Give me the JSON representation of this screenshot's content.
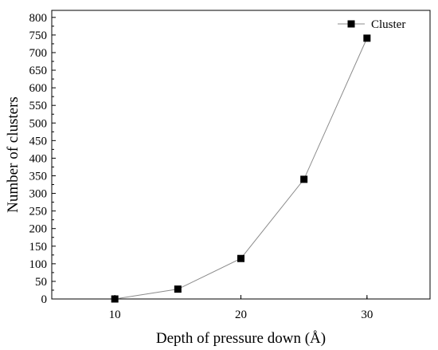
{
  "chart_data": {
    "type": "line",
    "title": "",
    "xlabel": "Depth of pressure down (Å)",
    "ylabel": "Number of clusters",
    "xlim": [
      5,
      35
    ],
    "ylim": [
      0,
      820
    ],
    "x_ticks": [
      10,
      20,
      30
    ],
    "y_ticks": [
      0,
      50,
      100,
      150,
      200,
      250,
      300,
      350,
      400,
      450,
      500,
      550,
      600,
      650,
      700,
      750,
      800
    ],
    "grid": false,
    "legend_position": "top-right",
    "series": [
      {
        "name": "Cluster",
        "marker": "square",
        "color": "#000000",
        "line_color": "#8c8c8c",
        "x": [
          10,
          15,
          20,
          25,
          30
        ],
        "y": [
          0,
          28,
          115,
          340,
          741
        ]
      }
    ]
  }
}
